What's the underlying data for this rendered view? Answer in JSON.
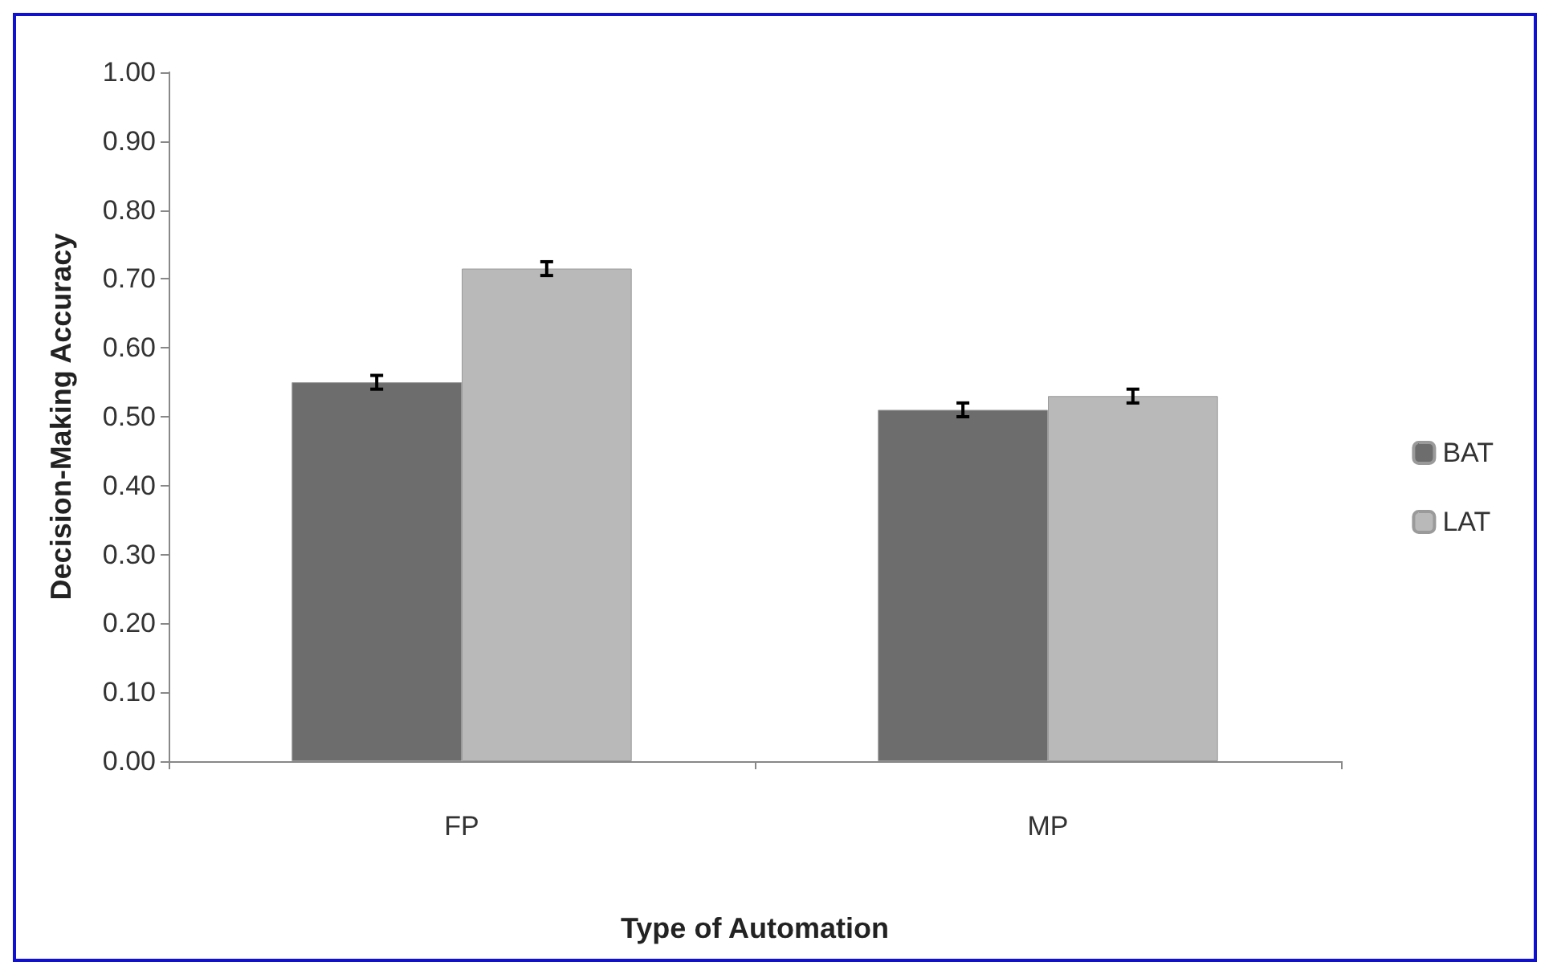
{
  "chart_data": {
    "type": "bar",
    "xlabel": "Type of Automation",
    "ylabel": "Decision-Making Accuracy",
    "categories": [
      "FP",
      "MP"
    ],
    "series": [
      {
        "name": "BAT",
        "color": "#6d6d6d",
        "values": [
          0.55,
          0.51
        ],
        "errors": [
          0.01,
          0.01
        ]
      },
      {
        "name": "LAT",
        "color": "#b9b9b9",
        "values": [
          0.715,
          0.53
        ],
        "errors": [
          0.01,
          0.01
        ]
      }
    ],
    "ylim": [
      0,
      1
    ],
    "yticks": [
      {
        "value": 0,
        "label": "0.00"
      },
      {
        "value": 0.1,
        "label": "0.10"
      },
      {
        "value": 0.2,
        "label": "0.20"
      },
      {
        "value": 0.3,
        "label": "0.30"
      },
      {
        "value": 0.4,
        "label": "0.40"
      },
      {
        "value": 0.5,
        "label": "0.50"
      },
      {
        "value": 0.6,
        "label": "0.60"
      },
      {
        "value": 0.7,
        "label": "0.70"
      },
      {
        "value": 0.8,
        "label": "0.80"
      },
      {
        "value": 0.9,
        "label": "0.90"
      },
      {
        "value": 1,
        "label": "1.00"
      }
    ],
    "grid": false,
    "legend": "right"
  }
}
